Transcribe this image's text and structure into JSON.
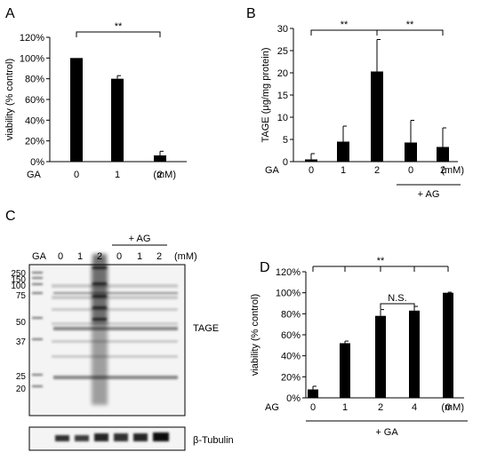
{
  "panels": {
    "A": {
      "letter": "A"
    },
    "B": {
      "letter": "B"
    },
    "C": {
      "letter": "C"
    },
    "D": {
      "letter": "D"
    }
  },
  "chart_data": [
    {
      "panel": "A",
      "type": "bar",
      "categories": [
        "0",
        "1",
        "2"
      ],
      "x_prefix": "GA",
      "x_unit": "(mM)",
      "values": [
        100,
        80,
        6
      ],
      "errors": [
        0,
        3,
        4
      ],
      "ylabel": "viability (% control)",
      "yticks": [
        "0%",
        "20%",
        "40%",
        "60%",
        "80%",
        "100%",
        "120%"
      ],
      "ylim": [
        0,
        120
      ],
      "significance": [
        {
          "from": 0,
          "to": 2,
          "label": "**"
        }
      ]
    },
    {
      "panel": "B",
      "type": "bar",
      "categories": [
        "0",
        "1",
        "2",
        "0",
        "2"
      ],
      "x_prefix": "GA",
      "x_unit": "(mM)",
      "group_label": "+ AG",
      "values": [
        0.5,
        4.5,
        20.3,
        4.3,
        3.3
      ],
      "errors": [
        1.3,
        3.5,
        7.2,
        5.0,
        4.3
      ],
      "ylabel": "TAGE (μg/mg protein)",
      "yticks": [
        "0",
        "5",
        "10",
        "15",
        "20",
        "25",
        "30"
      ],
      "ylim": [
        0,
        30
      ],
      "significance": [
        {
          "from": 0,
          "to": 2,
          "label": "**"
        },
        {
          "from": 2,
          "to": 4,
          "label": "**"
        }
      ]
    },
    {
      "panel": "D",
      "type": "bar",
      "categories": [
        "0",
        "1",
        "2",
        "4",
        "0"
      ],
      "x_prefix": "AG",
      "x_unit": "(mM)",
      "group_label": "+ GA",
      "values": [
        8,
        52,
        78,
        83,
        100
      ],
      "errors": [
        3,
        2,
        6,
        4,
        0.5
      ],
      "ylabel": "viability (% control)",
      "yticks": [
        "0%",
        "20%",
        "40%",
        "60%",
        "80%",
        "100%",
        "120%"
      ],
      "ylim": [
        0,
        120
      ],
      "significance": [
        {
          "from": 0,
          "to": 4,
          "label": "**"
        },
        {
          "from": 2,
          "to": 3,
          "label": "N.S."
        }
      ]
    }
  ],
  "blot": {
    "header_labels": [
      "GA",
      "0",
      "1",
      "2",
      "0",
      "1",
      "2"
    ],
    "group_label": "+ AG",
    "unit": "(mM)",
    "markers": [
      "250",
      "150",
      "100",
      "75",
      "50",
      "37",
      "25",
      "20"
    ],
    "tage_label": "TAGE",
    "tubulin_label": "β-Tubulin"
  },
  "colors": {
    "bar": "#000000",
    "blot_bg": "#f4f4f4"
  }
}
